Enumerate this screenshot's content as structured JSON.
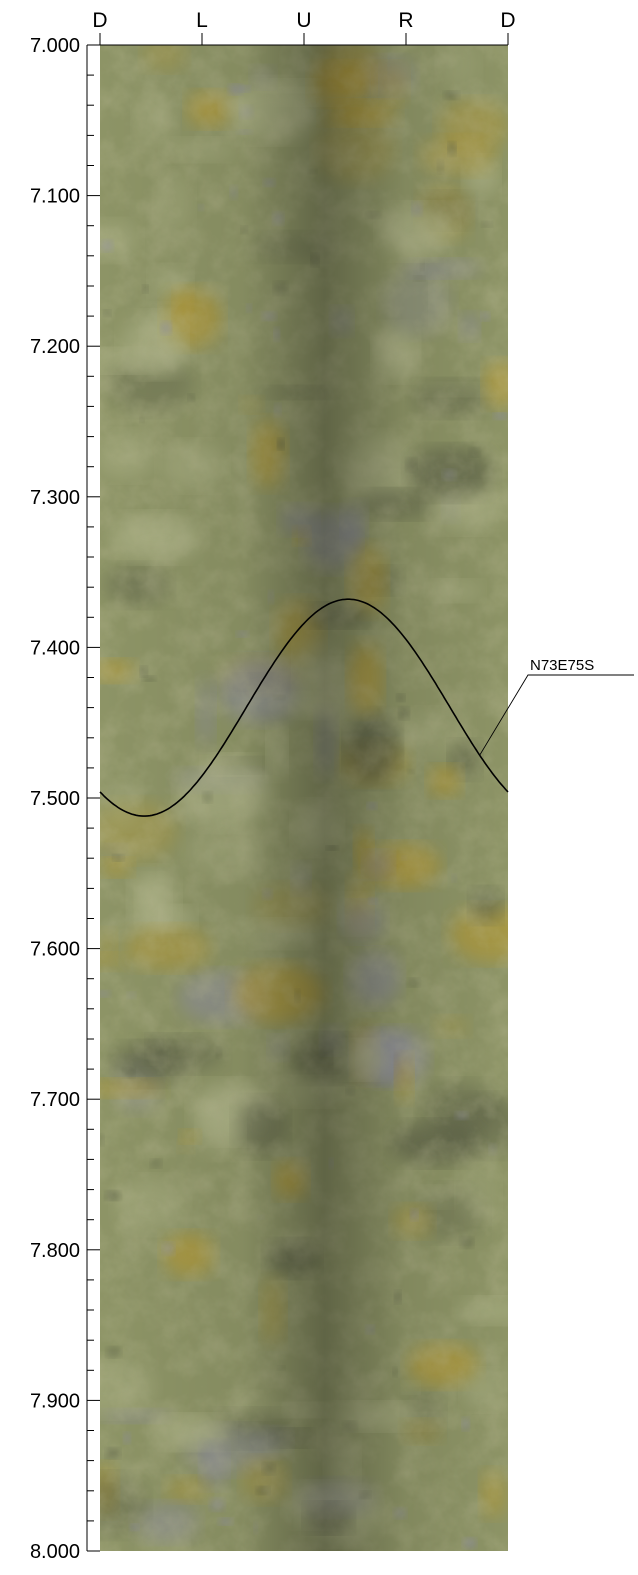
{
  "chart_data": {
    "type": "borehole-image-log",
    "depth_axis": {
      "range": [
        7.0,
        8.0
      ],
      "major_step": 0.1,
      "minor_step": 0.02,
      "tick_labels": [
        "7.000",
        "7.100",
        "7.200",
        "7.300",
        "7.400",
        "7.500",
        "7.600",
        "7.700",
        "7.800",
        "7.900",
        "8.000"
      ]
    },
    "orientation_axis": {
      "labels": [
        "D",
        "L",
        "U",
        "R",
        "D"
      ],
      "angles_deg": [
        0,
        90,
        180,
        270,
        360
      ]
    },
    "planes": [
      {
        "label": "N73E75S",
        "shallowest_depth": 7.368,
        "shallowest_angle_deg": 219,
        "deepest_depth": 7.512,
        "deepest_angle_deg": 39
      }
    ],
    "colors": {
      "rock_base": "#8d9466",
      "rock_light": "#b0b58a",
      "rock_dark": "#5c6147",
      "stain": "#b69a30",
      "grey_patch": "#8e8ea0",
      "trace": "#000000"
    }
  }
}
